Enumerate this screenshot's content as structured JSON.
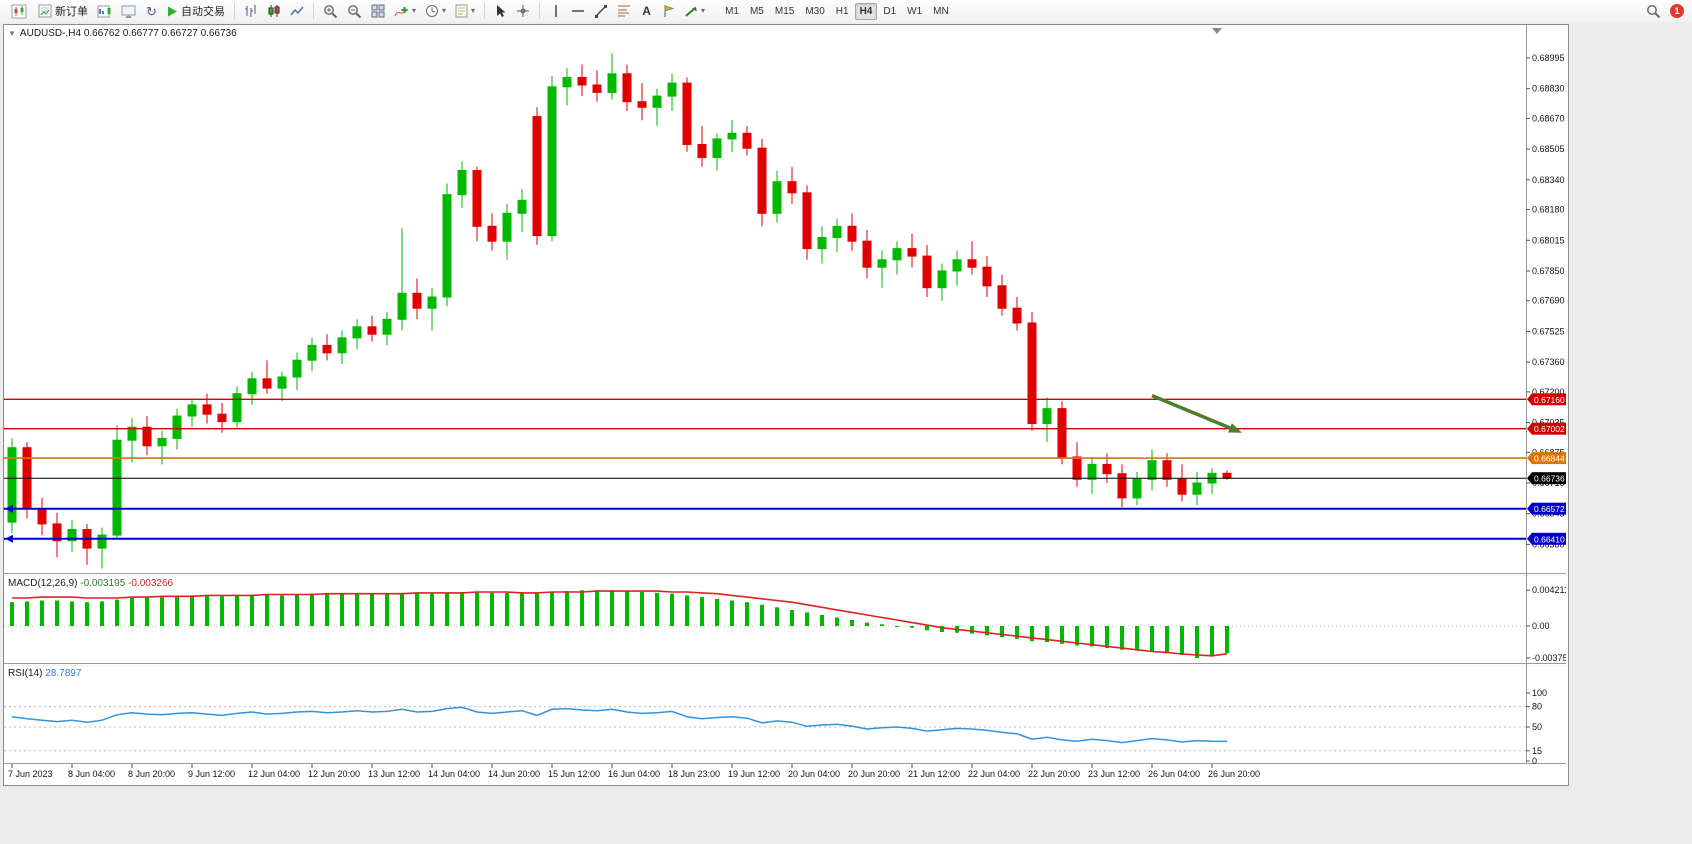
{
  "toolbar": {
    "new_order": "新订单",
    "auto_trading": "自动交易",
    "text_tool": "A",
    "timeframes": [
      "M1",
      "M5",
      "M15",
      "M30",
      "H1",
      "H4",
      "D1",
      "W1",
      "MN"
    ],
    "active_timeframe": "H4",
    "notification_count": "1"
  },
  "chart": {
    "info_line": "AUDUSD-,H4 0.66762 0.66777 0.66727 0.66736",
    "symbol": "AUDUSD-",
    "timeframe": "H4",
    "ohlc": {
      "open": "0.66762",
      "high": "0.66777",
      "low": "0.66727",
      "close": "0.66736"
    },
    "colors": {
      "bull": "#00b900",
      "bear": "#e00000",
      "background": "#ffffff"
    },
    "y_ticks": [
      "0.68995",
      "0.68830",
      "0.68670",
      "0.68505",
      "0.68340",
      "0.68180",
      "0.68015",
      "0.67850",
      "0.67690",
      "0.67525",
      "0.67360",
      "0.67200",
      "0.67035",
      "0.66875",
      "0.66710",
      "0.66545",
      "0.66380"
    ],
    "x_labels": [
      "7 Jun 2023",
      "8 Jun 04:00",
      "8 Jun 20:00",
      "9 Jun 12:00",
      "12 Jun 04:00",
      "12 Jun 20:00",
      "13 Jun 12:00",
      "14 Jun 04:00",
      "14 Jun 20:00",
      "15 Jun 12:00",
      "16 Jun 04:00",
      "18 Jun 23:00",
      "19 Jun 12:00",
      "20 Jun 04:00",
      "20 Jun 20:00",
      "21 Jun 12:00",
      "22 Jun 04:00",
      "22 Jun 20:00",
      "23 Jun 12:00",
      "26 Jun 04:00",
      "26 Jun 20:00"
    ],
    "levels": [
      {
        "price": "0.67160",
        "value": 0.6716,
        "color": "#d40000",
        "lw": 1.4,
        "edge_marker": false,
        "kind": "resistance-line"
      },
      {
        "price": "0.67002",
        "value": 0.67002,
        "color": "#d40000",
        "lw": 1.4,
        "edge_marker": false,
        "kind": "resistance-line"
      },
      {
        "price": "0.66844",
        "value": 0.66844,
        "color": "#e07300",
        "lw": 1.6,
        "edge_marker": false,
        "kind": "support-line"
      },
      {
        "price": "0.66736",
        "value": 0.66736,
        "color": "#000000",
        "lw": 1.0,
        "edge_marker": false,
        "kind": "bid-price-line"
      },
      {
        "price": "0.66572",
        "value": 0.66572,
        "color": "#0000cc",
        "lw": 2.0,
        "edge_marker": true,
        "kind": "support-line"
      },
      {
        "price": "0.66410",
        "value": 0.6641,
        "color": "#0000cc",
        "lw": 2.0,
        "edge_marker": true,
        "kind": "support-line"
      }
    ],
    "arrow": {
      "from": {
        "index": 76,
        "price": 0.6718
      },
      "to": {
        "index": 82,
        "price": 0.6698
      },
      "color": "#4e7e27"
    },
    "candles": [
      [
        0.665,
        0.6695,
        0.6644,
        0.669
      ],
      [
        0.669,
        0.6693,
        0.6652,
        0.6657
      ],
      [
        0.6657,
        0.6663,
        0.6643,
        0.6649
      ],
      [
        0.6649,
        0.6655,
        0.6631,
        0.664
      ],
      [
        0.664,
        0.6651,
        0.6634,
        0.6646
      ],
      [
        0.6646,
        0.6649,
        0.6627,
        0.6636
      ],
      [
        0.6636,
        0.6647,
        0.6625,
        0.6643
      ],
      [
        0.6643,
        0.6702,
        0.6641,
        0.6694
      ],
      [
        0.6694,
        0.6706,
        0.6682,
        0.6701
      ],
      [
        0.6701,
        0.6707,
        0.6686,
        0.6691
      ],
      [
        0.6691,
        0.6699,
        0.6681,
        0.6695
      ],
      [
        0.6695,
        0.6711,
        0.6689,
        0.6707
      ],
      [
        0.6707,
        0.6716,
        0.6701,
        0.6713
      ],
      [
        0.6713,
        0.6719,
        0.6703,
        0.6708
      ],
      [
        0.6708,
        0.6714,
        0.6698,
        0.6704
      ],
      [
        0.6704,
        0.6723,
        0.6701,
        0.6719
      ],
      [
        0.6719,
        0.6731,
        0.6713,
        0.6727
      ],
      [
        0.6727,
        0.6737,
        0.6719,
        0.6722
      ],
      [
        0.6722,
        0.6731,
        0.6715,
        0.6728
      ],
      [
        0.6728,
        0.6741,
        0.6721,
        0.6737
      ],
      [
        0.6737,
        0.6749,
        0.6731,
        0.6745
      ],
      [
        0.6745,
        0.6751,
        0.6737,
        0.6741
      ],
      [
        0.6741,
        0.6753,
        0.6735,
        0.6749
      ],
      [
        0.6749,
        0.6759,
        0.6743,
        0.6755
      ],
      [
        0.6755,
        0.6761,
        0.6747,
        0.6751
      ],
      [
        0.6751,
        0.6763,
        0.6745,
        0.6759
      ],
      [
        0.6759,
        0.6808,
        0.6753,
        0.6773
      ],
      [
        0.6773,
        0.6781,
        0.6759,
        0.6765
      ],
      [
        0.6765,
        0.6776,
        0.6753,
        0.6771
      ],
      [
        0.6771,
        0.6832,
        0.6766,
        0.6826
      ],
      [
        0.6826,
        0.6844,
        0.6819,
        0.6839
      ],
      [
        0.6839,
        0.6841,
        0.6801,
        0.6809
      ],
      [
        0.6809,
        0.6816,
        0.6796,
        0.6801
      ],
      [
        0.6801,
        0.6821,
        0.6791,
        0.6816
      ],
      [
        0.6816,
        0.6829,
        0.6806,
        0.6823
      ],
      [
        0.6868,
        0.6873,
        0.6799,
        0.6804
      ],
      [
        0.6804,
        0.689,
        0.6801,
        0.6884
      ],
      [
        0.6884,
        0.6894,
        0.6874,
        0.6889
      ],
      [
        0.6889,
        0.6896,
        0.6879,
        0.6885
      ],
      [
        0.6885,
        0.6893,
        0.6876,
        0.6881
      ],
      [
        0.6881,
        0.6902,
        0.6877,
        0.6891
      ],
      [
        0.6891,
        0.6896,
        0.6871,
        0.6876
      ],
      [
        0.6876,
        0.6886,
        0.6866,
        0.6873
      ],
      [
        0.6873,
        0.6883,
        0.6863,
        0.6879
      ],
      [
        0.6879,
        0.6891,
        0.6871,
        0.6886
      ],
      [
        0.6886,
        0.6889,
        0.6849,
        0.6853
      ],
      [
        0.6853,
        0.6863,
        0.6841,
        0.6846
      ],
      [
        0.6846,
        0.6859,
        0.6839,
        0.6856
      ],
      [
        0.6856,
        0.6866,
        0.6849,
        0.6859
      ],
      [
        0.6859,
        0.6863,
        0.6847,
        0.6851
      ],
      [
        0.6851,
        0.6856,
        0.6809,
        0.6816
      ],
      [
        0.6816,
        0.6839,
        0.6811,
        0.6833
      ],
      [
        0.6833,
        0.6841,
        0.6821,
        0.6827
      ],
      [
        0.6827,
        0.6831,
        0.6791,
        0.6797
      ],
      [
        0.6797,
        0.6809,
        0.6789,
        0.6803
      ],
      [
        0.6803,
        0.6813,
        0.6795,
        0.6809
      ],
      [
        0.6809,
        0.6816,
        0.6796,
        0.6801
      ],
      [
        0.6801,
        0.6807,
        0.6781,
        0.6787
      ],
      [
        0.6787,
        0.6796,
        0.6776,
        0.6791
      ],
      [
        0.6791,
        0.6801,
        0.6783,
        0.6797
      ],
      [
        0.6797,
        0.6805,
        0.6787,
        0.6793
      ],
      [
        0.6793,
        0.6799,
        0.6771,
        0.6776
      ],
      [
        0.6776,
        0.6789,
        0.6769,
        0.6785
      ],
      [
        0.6785,
        0.6796,
        0.6777,
        0.6791
      ],
      [
        0.6791,
        0.6801,
        0.6783,
        0.6787
      ],
      [
        0.6787,
        0.6793,
        0.6771,
        0.6777
      ],
      [
        0.6777,
        0.6783,
        0.6761,
        0.6765
      ],
      [
        0.6765,
        0.6771,
        0.6753,
        0.6757
      ],
      [
        0.6757,
        0.6763,
        0.6699,
        0.6703
      ],
      [
        0.6703,
        0.6717,
        0.6693,
        0.6711
      ],
      [
        0.6711,
        0.6715,
        0.6681,
        0.6685
      ],
      [
        0.6685,
        0.6693,
        0.6669,
        0.6673
      ],
      [
        0.6673,
        0.6685,
        0.6665,
        0.6681
      ],
      [
        0.6681,
        0.6687,
        0.6671,
        0.6676
      ],
      [
        0.6676,
        0.6681,
        0.6658,
        0.6663
      ],
      [
        0.6663,
        0.6677,
        0.6659,
        0.6673
      ],
      [
        0.6673,
        0.6689,
        0.6667,
        0.6683
      ],
      [
        0.6683,
        0.6687,
        0.6669,
        0.6673
      ],
      [
        0.6673,
        0.6681,
        0.6661,
        0.6665
      ],
      [
        0.6665,
        0.6677,
        0.6659,
        0.6671
      ],
      [
        0.6671,
        0.6679,
        0.6665,
        0.66762
      ],
      [
        0.66762,
        0.66777,
        0.66727,
        0.66736
      ]
    ]
  },
  "macd": {
    "label": "MACD(12,26,9)",
    "value1": "-0.003195",
    "value2": "-0.003266",
    "scale": [
      "0.004211",
      "0.00",
      "-0.003755"
    ],
    "level_lines": [
      0
    ],
    "colors": {
      "histogram": "#00b900",
      "signal": "#dd2222"
    },
    "histogram": [
      0.0028,
      0.0029,
      0.003,
      0.003,
      0.0029,
      0.0028,
      0.0029,
      0.0031,
      0.0033,
      0.0034,
      0.0034,
      0.0035,
      0.0036,
      0.0036,
      0.0035,
      0.0036,
      0.0037,
      0.0037,
      0.0036,
      0.0037,
      0.0038,
      0.0038,
      0.0037,
      0.0038,
      0.0038,
      0.0038,
      0.0039,
      0.0039,
      0.0038,
      0.0039,
      0.004,
      0.004,
      0.0039,
      0.0039,
      0.004,
      0.0039,
      0.004,
      0.0041,
      0.0042,
      0.00421,
      0.0042,
      0.0041,
      0.004,
      0.0039,
      0.0038,
      0.0036,
      0.0034,
      0.0032,
      0.003,
      0.0028,
      0.0025,
      0.0022,
      0.0019,
      0.0016,
      0.0013,
      0.001,
      0.0007,
      0.0004,
      0.0002,
      0.0,
      -0.0002,
      -0.0005,
      -0.0007,
      -0.0008,
      -0.0009,
      -0.0011,
      -0.0013,
      -0.0015,
      -0.0018,
      -0.0019,
      -0.0021,
      -0.0023,
      -0.0024,
      -0.0026,
      -0.0028,
      -0.0029,
      -0.003,
      -0.0032,
      -0.0034,
      -0.00376,
      -0.0036,
      -0.0032
    ],
    "signal": [
      0.0033,
      0.0033,
      0.0034,
      0.0034,
      0.0034,
      0.0033,
      0.0033,
      0.0033,
      0.0034,
      0.0034,
      0.0035,
      0.0035,
      0.0035,
      0.0036,
      0.0036,
      0.0036,
      0.0036,
      0.0037,
      0.0037,
      0.0037,
      0.0037,
      0.0038,
      0.0038,
      0.0038,
      0.0038,
      0.0038,
      0.0038,
      0.0039,
      0.0039,
      0.0039,
      0.0039,
      0.004,
      0.004,
      0.004,
      0.0039,
      0.0039,
      0.004,
      0.004,
      0.004,
      0.0041,
      0.0041,
      0.0041,
      0.0041,
      0.0041,
      0.004,
      0.004,
      0.0039,
      0.0038,
      0.0036,
      0.0034,
      0.0032,
      0.003,
      0.0028,
      0.0025,
      0.0022,
      0.0019,
      0.0016,
      0.0013,
      0.001,
      0.0007,
      0.0004,
      0.0001,
      -0.0002,
      -0.0004,
      -0.0006,
      -0.0008,
      -0.001,
      -0.0012,
      -0.0014,
      -0.0016,
      -0.0018,
      -0.002,
      -0.0022,
      -0.0024,
      -0.0026,
      -0.0028,
      -0.003,
      -0.0031,
      -0.0033,
      -0.0034,
      -0.0035,
      -0.00327
    ]
  },
  "rsi": {
    "label": "RSI(14)",
    "value": "28.7897",
    "scale": [
      "100",
      "80",
      "50",
      "15",
      "0"
    ],
    "levels": [
      80,
      50,
      15
    ],
    "color": "#2f93e0",
    "values": [
      65,
      62,
      60,
      58,
      60,
      57,
      60,
      68,
      71,
      69,
      68,
      70,
      71,
      69,
      67,
      70,
      72,
      69,
      70,
      72,
      73,
      71,
      72,
      74,
      72,
      73,
      76,
      72,
      73,
      77,
      79,
      72,
      70,
      72,
      74,
      67,
      76,
      77,
      75,
      74,
      76,
      72,
      70,
      71,
      73,
      65,
      62,
      64,
      65,
      63,
      56,
      59,
      57,
      51,
      53,
      54,
      51,
      47,
      49,
      50,
      48,
      44,
      46,
      48,
      47,
      45,
      42,
      40,
      32,
      35,
      31,
      29,
      32,
      30,
      27,
      30,
      33,
      31,
      28,
      30,
      29,
      28.79
    ]
  }
}
